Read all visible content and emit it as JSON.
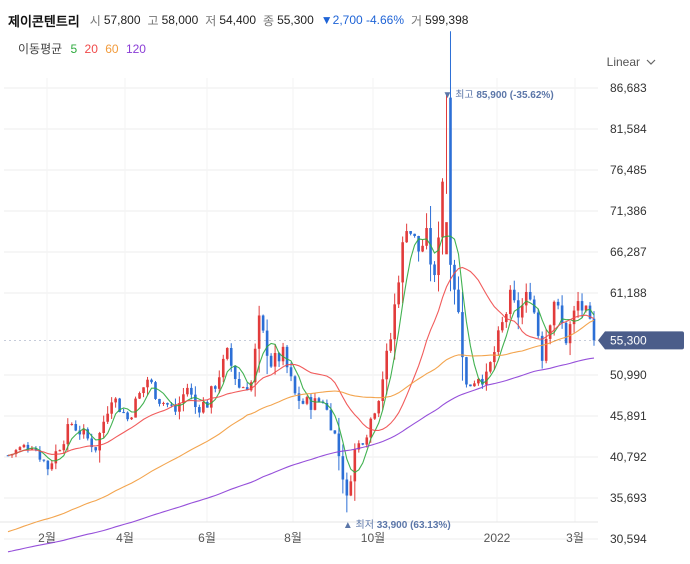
{
  "stock": {
    "name": "제이콘텐트리",
    "open_label": "시",
    "open": "57,800",
    "high_label": "고",
    "high": "58,000",
    "low_label": "저",
    "low": "54,400",
    "close_label": "종",
    "close": "55,300",
    "change": "▼2,700 -4.66%",
    "volume_label": "거",
    "volume": "599,398"
  },
  "ma": {
    "title": "이동평균",
    "items": [
      {
        "label": "5",
        "color": "#2eaa3e"
      },
      {
        "label": "20",
        "color": "#f04a4a"
      },
      {
        "label": "60",
        "color": "#f29b3c"
      },
      {
        "label": "120",
        "color": "#8b3dd6"
      }
    ]
  },
  "scale": {
    "label": "Linear"
  },
  "chart_data": {
    "type": "candlestick",
    "y_ticks": [
      86683,
      81584,
      76485,
      71386,
      66287,
      61188,
      50990,
      45891,
      40792,
      35693,
      30594
    ],
    "y_tick_labels": [
      "86,683",
      "81,584",
      "76,485",
      "71,386",
      "66,287",
      "61,188",
      "50,990",
      "45,891",
      "40,792",
      "35,693",
      "30,594"
    ],
    "ylim": [
      28000,
      88500
    ],
    "x_labels": [
      "2월",
      "4월",
      "6월",
      "8월",
      "10월",
      "2022",
      "3월"
    ],
    "current_price": 55300,
    "current_price_label": "55,300",
    "high_annotation": {
      "prefix": "최고",
      "value": "85,900",
      "pct": "(-35.62%)",
      "price": 85900
    },
    "low_annotation": {
      "prefix": "최저",
      "value": "33,900",
      "pct": "(63.13%)",
      "price": 33900
    },
    "price_path": [
      [
        0,
        41000
      ],
      [
        6,
        42500
      ],
      [
        10,
        39500
      ],
      [
        16,
        45000
      ],
      [
        22,
        42000
      ],
      [
        26,
        48500
      ],
      [
        30,
        45500
      ],
      [
        35,
        50500
      ],
      [
        38,
        48000
      ],
      [
        42,
        46500
      ],
      [
        45,
        49500
      ],
      [
        47,
        47000
      ],
      [
        50,
        47500
      ],
      [
        55,
        53500
      ],
      [
        58,
        49500
      ],
      [
        61,
        50000
      ],
      [
        63,
        57500
      ],
      [
        66,
        52500
      ],
      [
        69,
        53500
      ],
      [
        72,
        48500
      ],
      [
        74,
        47500
      ],
      [
        77,
        47500
      ],
      [
        79,
        48000
      ],
      [
        82,
        43500
      ],
      [
        84,
        38500
      ],
      [
        85,
        35500
      ],
      [
        87,
        41500
      ],
      [
        90,
        44000
      ],
      [
        93,
        48500
      ],
      [
        96,
        55500
      ],
      [
        98,
        63500
      ],
      [
        100,
        70000
      ],
      [
        103,
        66500
      ],
      [
        105,
        68000
      ],
      [
        107,
        62500
      ],
      [
        109,
        75500
      ],
      [
        110,
        85900
      ],
      [
        111,
        66000
      ],
      [
        113,
        58500
      ],
      [
        115,
        49500
      ],
      [
        118,
        51000
      ],
      [
        120,
        50500
      ],
      [
        123,
        55500
      ],
      [
        126,
        60500
      ],
      [
        128,
        58500
      ],
      [
        131,
        61500
      ],
      [
        134,
        53500
      ],
      [
        137,
        60500
      ],
      [
        140,
        55500
      ],
      [
        143,
        60000
      ],
      [
        145,
        58500
      ],
      [
        147,
        55300
      ]
    ],
    "ma_series": [
      {
        "period": 5,
        "color": "#2eaa3e"
      },
      {
        "period": 20,
        "color": "#f04a4a"
      },
      {
        "period": 60,
        "color": "#f29b3c"
      },
      {
        "period": 120,
        "color": "#8b3dd6"
      }
    ],
    "up_color": "#e23b3b",
    "down_color": "#2c6fd6",
    "grid": true
  }
}
